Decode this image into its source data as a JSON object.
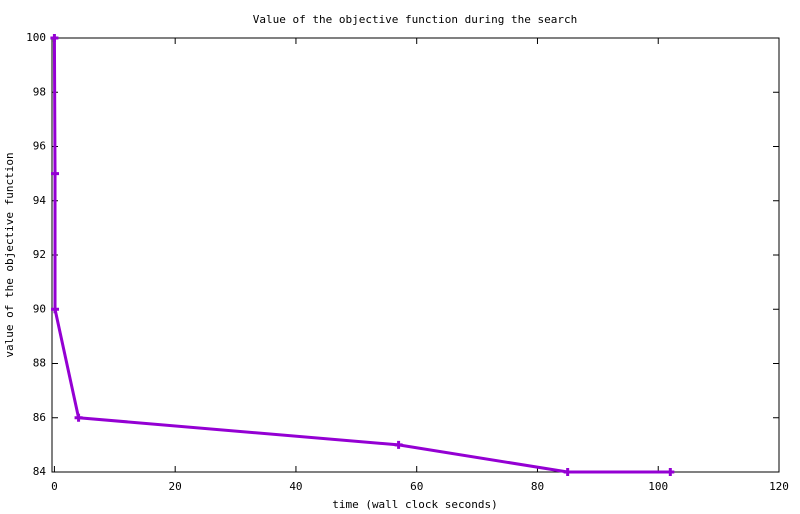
{
  "chart_data": {
    "type": "line",
    "title": "Value of the objective function during the search",
    "x_label": "time (wall clock seconds)",
    "y_label": "value of the objective function",
    "series": [
      {
        "color": "#9400d3",
        "x": [
          0,
          0.1,
          0.1,
          4,
          57,
          85,
          102
        ],
        "values": [
          100,
          95,
          90,
          86,
          85,
          84,
          84
        ]
      }
    ],
    "xlim": [
      -0.4,
      120
    ],
    "xticks": [
      0,
      20,
      40,
      60,
      80,
      100,
      120
    ],
    "ylim": [
      84,
      100
    ],
    "yticks": [
      84,
      86,
      88,
      90,
      92,
      94,
      96,
      98,
      100
    ],
    "grid": false
  }
}
